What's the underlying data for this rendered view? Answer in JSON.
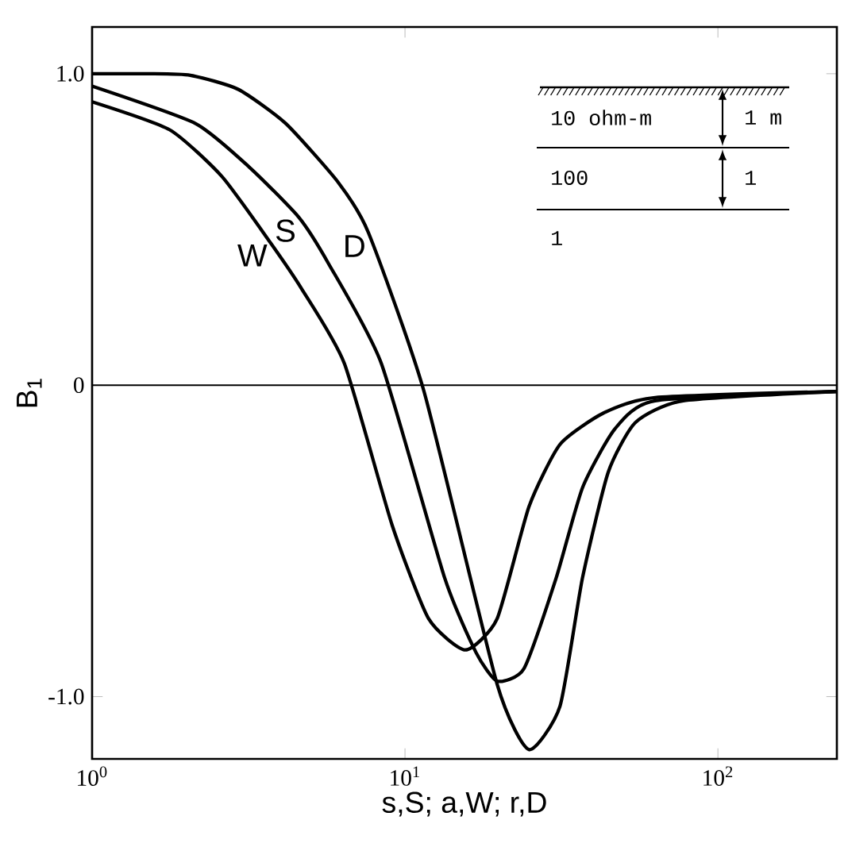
{
  "chart_data": {
    "type": "line",
    "xlabel": "s,S; a,W; r,D",
    "ylabel": "B$_{1}$",
    "log": "x",
    "xlim": [
      1,
      240
    ],
    "xticks": [
      {
        "value": 1,
        "label": "10$^{0}$"
      },
      {
        "value": 10,
        "label": "10$^{1}$"
      },
      {
        "value": 100,
        "label": "10$^{2}$"
      }
    ],
    "ylim": [
      -1.2,
      1.15
    ],
    "yticks": [
      {
        "value": 1,
        "label": "1.0"
      },
      0,
      {
        "value": -1,
        "label": "-1.0"
      }
    ],
    "grid": false,
    "legend": false,
    "marker": "none",
    "line_style": "solid",
    "ref_lines": [
      {
        "axis": "y",
        "value": 0
      }
    ],
    "annotations": [
      "10 ohm-m",
      "1 m",
      "100",
      "1",
      "1"
    ],
    "series": [
      {
        "name": "W",
        "color": "#000000",
        "x": [
          1,
          1.77,
          2.6,
          3.7,
          4.67,
          6.4,
          9.1,
          11.9,
          15.6,
          19.7,
          24.9,
          31.3,
          43,
          63,
          240
        ],
        "values": [
          0.91,
          0.82,
          0.67,
          0.46,
          0.31,
          0.07,
          -0.45,
          -0.75,
          -0.85,
          -0.75,
          -0.39,
          -0.19,
          -0.09,
          -0.04,
          -0.02
        ]
      },
      {
        "name": "S",
        "color": "#000000",
        "x": [
          1,
          2.14,
          3.18,
          4.57,
          5.7,
          8.4,
          13.4,
          16.9,
          19.7,
          24,
          30.4,
          36.9,
          46.9,
          63,
          240
        ],
        "values": [
          0.96,
          0.84,
          0.7,
          0.54,
          0.39,
          0.07,
          -0.62,
          -0.86,
          -0.95,
          -0.91,
          -0.62,
          -0.33,
          -0.14,
          -0.05,
          -0.02
        ]
      },
      {
        "name": "D",
        "color": "#000000",
        "x": [
          1,
          1.5,
          2.06,
          2.93,
          4.16,
          6.13,
          7.64,
          11.5,
          19.7,
          24.9,
          31.3,
          36.9,
          44.6,
          54.5,
          77.5,
          240
        ],
        "values": [
          1.0,
          1.0,
          0.995,
          0.95,
          0.84,
          0.65,
          0.49,
          -0.02,
          -0.96,
          -1.17,
          -1.03,
          -0.62,
          -0.28,
          -0.12,
          -0.05,
          -0.02
        ]
      }
    ]
  }
}
